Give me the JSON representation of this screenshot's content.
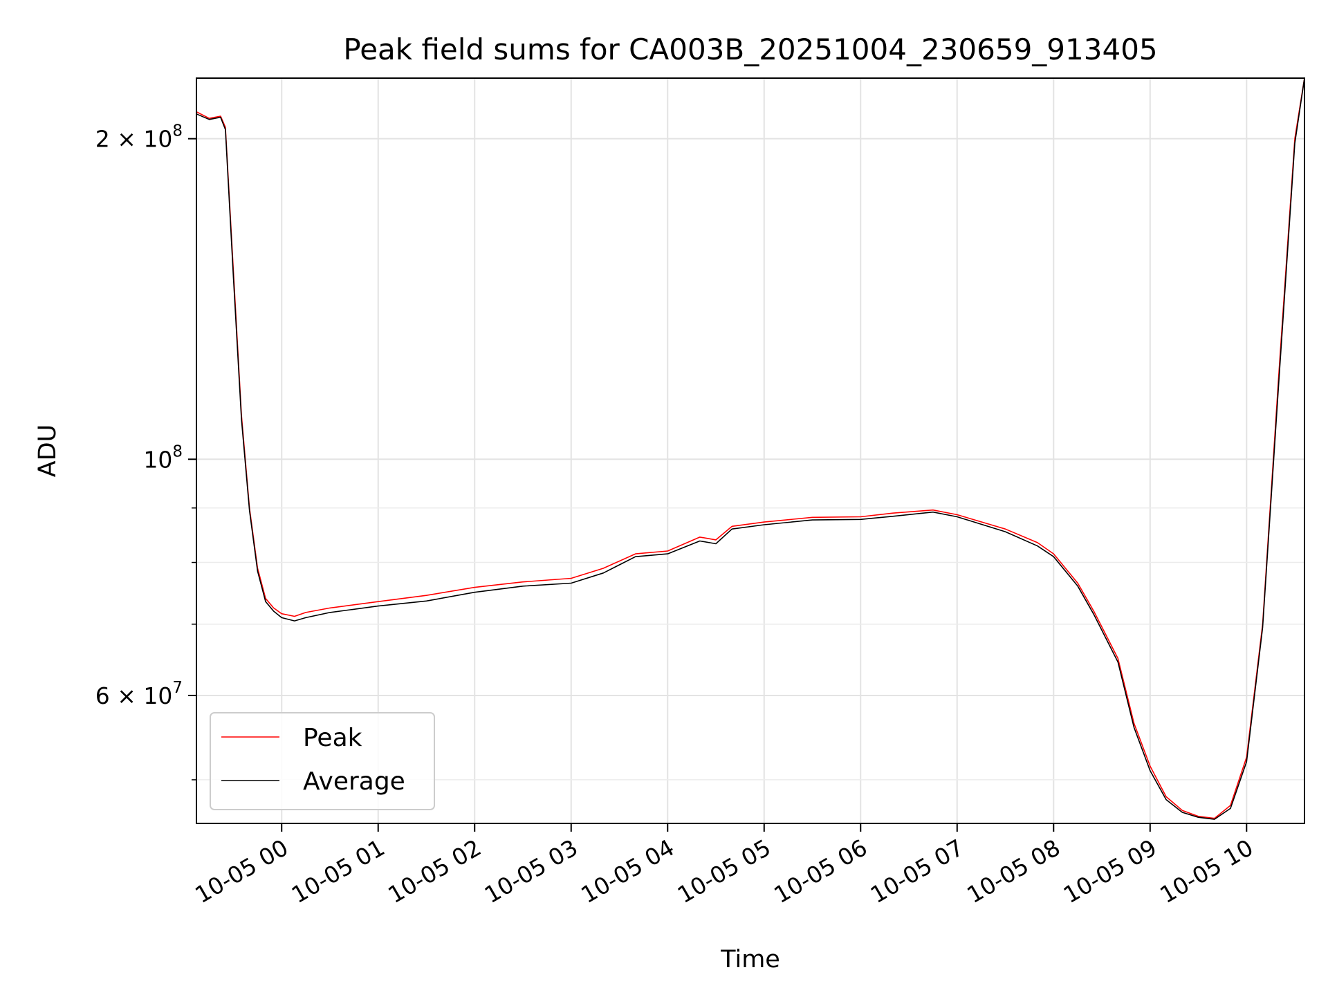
{
  "chart_data": {
    "type": "line",
    "title": "Peak field sums for CA003B_20251004_230659_913405",
    "xlabel": "Time",
    "ylabel": "ADU",
    "y_scale": "log",
    "grid": true,
    "legend_position": "lower-left",
    "xlim": [
      "2025-10-04 23:07",
      "2025-10-05 10:36"
    ],
    "ylim": [
      45500000,
      228000000
    ],
    "x_ticks": [
      "2025-10-05 00:00",
      "2025-10-05 01:00",
      "2025-10-05 02:00",
      "2025-10-05 03:00",
      "2025-10-05 04:00",
      "2025-10-05 05:00",
      "2025-10-05 06:00",
      "2025-10-05 07:00",
      "2025-10-05 08:00",
      "2025-10-05 09:00",
      "2025-10-05 10:00"
    ],
    "x_tick_labels": [
      "10-05 00",
      "10-05 01",
      "10-05 02",
      "10-05 03",
      "10-05 04",
      "10-05 05",
      "10-05 06",
      "10-05 07",
      "10-05 08",
      "10-05 09",
      "10-05 10"
    ],
    "y_major_ticks": [
      {
        "value": 200000000,
        "base": "2 × 10",
        "exp": "8"
      },
      {
        "value": 100000000,
        "base": "10",
        "exp": "8"
      },
      {
        "value": 60000000,
        "base": "6 × 10",
        "exp": "7"
      }
    ],
    "y_minor_ticks": [
      50000000,
      70000000,
      80000000,
      90000000
    ],
    "x": [
      "2025-10-04 23:07",
      "2025-10-04 23:15",
      "2025-10-04 23:22",
      "2025-10-04 23:25",
      "2025-10-04 23:30",
      "2025-10-04 23:35",
      "2025-10-04 23:40",
      "2025-10-04 23:45",
      "2025-10-04 23:50",
      "2025-10-04 23:55",
      "2025-10-05 00:00",
      "2025-10-05 00:08",
      "2025-10-05 00:15",
      "2025-10-05 00:30",
      "2025-10-05 01:00",
      "2025-10-05 01:30",
      "2025-10-05 02:00",
      "2025-10-05 02:30",
      "2025-10-05 03:00",
      "2025-10-05 03:20",
      "2025-10-05 03:40",
      "2025-10-05 04:00",
      "2025-10-05 04:20",
      "2025-10-05 04:30",
      "2025-10-05 04:40",
      "2025-10-05 05:00",
      "2025-10-05 05:30",
      "2025-10-05 06:00",
      "2025-10-05 06:20",
      "2025-10-05 06:45",
      "2025-10-05 07:00",
      "2025-10-05 07:30",
      "2025-10-05 07:50",
      "2025-10-05 08:00",
      "2025-10-05 08:15",
      "2025-10-05 08:25",
      "2025-10-05 08:40",
      "2025-10-05 08:50",
      "2025-10-05 09:00",
      "2025-10-05 09:10",
      "2025-10-05 09:20",
      "2025-10-05 09:30",
      "2025-10-05 09:40",
      "2025-10-05 09:50",
      "2025-10-05 10:00",
      "2025-10-05 10:10",
      "2025-10-05 10:20",
      "2025-10-05 10:30",
      "2025-10-05 10:36"
    ],
    "series": [
      {
        "name": "Peak",
        "color": "#ff0000",
        "values": [
          212000000,
          209000000,
          210000000,
          205000000,
          150000000,
          110000000,
          90000000,
          79000000,
          74000000,
          72500000,
          71600000,
          71200000,
          71800000,
          72500000,
          73500000,
          74500000,
          75800000,
          76700000,
          77300000,
          79000000,
          81500000,
          82000000,
          84500000,
          84000000,
          86500000,
          87300000,
          88200000,
          88300000,
          89000000,
          89600000,
          88700000,
          86000000,
          83500000,
          81500000,
          76500000,
          72000000,
          65000000,
          56500000,
          51500000,
          48200000,
          46800000,
          46200000,
          46000000,
          47300000,
          52500000,
          70000000,
          120000000,
          200000000,
          228000000
        ]
      },
      {
        "name": "Average",
        "color": "#000000",
        "values": [
          211000000,
          208500000,
          209500000,
          204000000,
          148000000,
          109000000,
          89500000,
          78500000,
          73500000,
          72000000,
          71000000,
          70500000,
          71000000,
          71800000,
          72800000,
          73600000,
          75000000,
          76000000,
          76500000,
          78200000,
          81000000,
          81500000,
          83800000,
          83300000,
          86000000,
          86800000,
          87700000,
          87800000,
          88400000,
          89200000,
          88300000,
          85500000,
          82900000,
          81000000,
          76000000,
          71500000,
          64500000,
          56000000,
          51000000,
          47900000,
          46600000,
          46100000,
          45900000,
          47000000,
          52000000,
          69500000,
          118000000,
          198000000,
          228000000
        ]
      }
    ]
  }
}
